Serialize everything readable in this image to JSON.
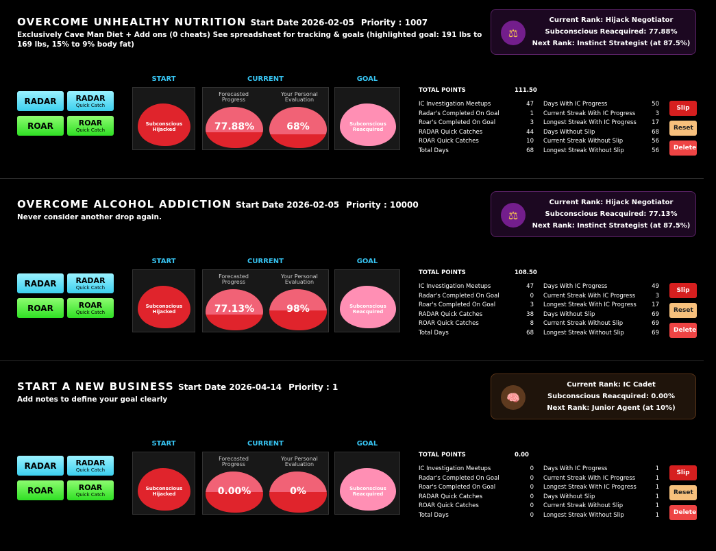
{
  "labels": {
    "start": "START",
    "current": "CURRENT",
    "goal": "GOAL",
    "forecasted": "Forecasted Progress",
    "personal": "Your Personal Evaluation",
    "hijacked": "Subconscious Hijacked",
    "reacquired": "Subconscious Reacquired",
    "radar": "RADAR",
    "roar": "ROAR",
    "quick_catch": "Quick Catch",
    "total_points": "TOTAL POINTS",
    "slip": "Slip",
    "reset": "Reset",
    "delete": "Delete",
    "start_date_label": "Start Date",
    "priority_label": "Priority :"
  },
  "stat_labels_left": [
    "IC Investigation Meetups",
    "Radar's Completed On Goal",
    "Roar's Completed On Goal",
    "RADAR Quick Catches",
    "ROAR Quick Catches",
    "Total Days"
  ],
  "stat_labels_right": [
    "Days With IC Progress",
    "Current Streak With IC Progress",
    "Longest Streak With IC Progress",
    "Days Without Slip",
    "Current Streak Without Slip",
    "Longest Streak Without Slip"
  ],
  "colors": {
    "accent_blue": "#37c4f2",
    "brain_red": "#e0242c",
    "brain_pink": "#ff8fb4",
    "rank_purple": "#731e8c",
    "rank_brown": "#5e3a1f"
  },
  "goals": [
    {
      "title": "OVERCOME UNHEALTHY NUTRITION",
      "start_date": "2026-02-05",
      "priority": "1007",
      "description": "Exclusively Cave Man Diet + Add ons (0 cheats) See spreadsheet for tracking & goals (highlighted goal: 191 lbs to 169 lbs, 15% to 9% body fat)",
      "rank": {
        "current": "Current Rank: Hijack Negotiator",
        "reacquired": "Subconscious Reacquired: 77.88%",
        "next": "Next Rank: Instinct Strategist (at 87.5%)",
        "icon": "scales-icon"
      },
      "forecasted": "77.88%",
      "forecasted_value": 77.88,
      "personal": "68%",
      "personal_value": 68,
      "total_points": "111.50",
      "left_values": [
        "47",
        "1",
        "3",
        "44",
        "10",
        "68"
      ],
      "right_values": [
        "50",
        "3",
        "17",
        "68",
        "56",
        "56"
      ]
    },
    {
      "title": "OVERCOME ALCOHOL ADDICTION",
      "start_date": "2026-02-05",
      "priority": "10000",
      "description": "Never consider another drop again.",
      "rank": {
        "current": "Current Rank: Hijack Negotiator",
        "reacquired": "Subconscious Reacquired: 77.13%",
        "next": "Next Rank: Instinct Strategist (at 87.5%)",
        "icon": "scales-icon"
      },
      "forecasted": "77.13%",
      "forecasted_value": 77.13,
      "personal": "98%",
      "personal_value": 98,
      "total_points": "108.50",
      "left_values": [
        "47",
        "0",
        "3",
        "38",
        "8",
        "68"
      ],
      "right_values": [
        "49",
        "3",
        "17",
        "69",
        "69",
        "69"
      ]
    },
    {
      "title": "START A NEW BUSINESS",
      "start_date": "2026-04-14",
      "priority": "1",
      "description": "Add notes to define your goal clearly",
      "rank": {
        "current": "Current Rank: IC Cadet",
        "reacquired": "Subconscious Reacquired: 0.00%",
        "next": "Next Rank: Junior Agent (at 10%)",
        "icon": "brain-icon"
      },
      "forecasted": "0.00%",
      "forecasted_value": 0,
      "personal": "0%",
      "personal_value": 0,
      "total_points": "0.00",
      "left_values": [
        "0",
        "0",
        "0",
        "0",
        "0",
        "0"
      ],
      "right_values": [
        "1",
        "1",
        "1",
        "1",
        "1",
        "1"
      ]
    }
  ]
}
